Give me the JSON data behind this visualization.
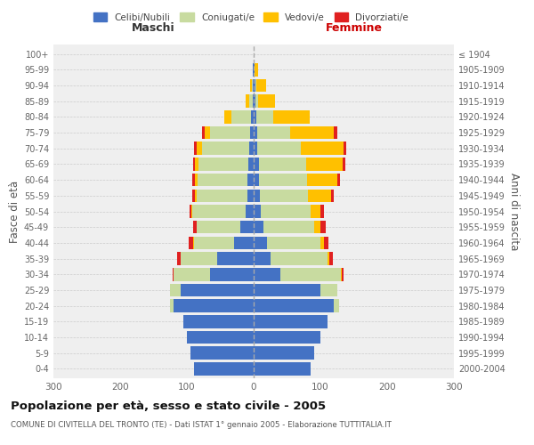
{
  "age_groups": [
    "0-4",
    "5-9",
    "10-14",
    "15-19",
    "20-24",
    "25-29",
    "30-34",
    "35-39",
    "40-44",
    "45-49",
    "50-54",
    "55-59",
    "60-64",
    "65-69",
    "70-74",
    "75-79",
    "80-84",
    "85-89",
    "90-94",
    "95-99",
    "100+"
  ],
  "birth_years": [
    "2000-2004",
    "1995-1999",
    "1990-1994",
    "1985-1989",
    "1980-1984",
    "1975-1979",
    "1970-1974",
    "1965-1969",
    "1960-1964",
    "1955-1959",
    "1950-1954",
    "1945-1949",
    "1940-1944",
    "1935-1939",
    "1930-1934",
    "1925-1929",
    "1920-1924",
    "1915-1919",
    "1910-1914",
    "1905-1909",
    "≤ 1904"
  ],
  "maschi": {
    "celibi": [
      90,
      95,
      100,
      105,
      120,
      110,
      65,
      55,
      30,
      20,
      12,
      10,
      9,
      8,
      7,
      5,
      4,
      2,
      1,
      1,
      0
    ],
    "coniugati": [
      0,
      0,
      0,
      0,
      5,
      15,
      55,
      55,
      60,
      65,
      80,
      75,
      75,
      75,
      70,
      60,
      30,
      5,
      2,
      0,
      0
    ],
    "vedovi": [
      0,
      0,
      0,
      0,
      0,
      0,
      0,
      0,
      1,
      1,
      2,
      3,
      4,
      5,
      8,
      8,
      10,
      5,
      2,
      0,
      0
    ],
    "divorziati": [
      0,
      0,
      0,
      0,
      0,
      0,
      2,
      5,
      6,
      5,
      2,
      4,
      4,
      3,
      5,
      4,
      0,
      0,
      0,
      0,
      0
    ]
  },
  "femmine": {
    "nubili": [
      85,
      90,
      100,
      110,
      120,
      100,
      40,
      25,
      20,
      15,
      10,
      9,
      8,
      8,
      5,
      5,
      4,
      2,
      2,
      1,
      0
    ],
    "coniugate": [
      0,
      0,
      0,
      0,
      8,
      25,
      90,
      85,
      80,
      75,
      75,
      72,
      72,
      70,
      65,
      50,
      25,
      5,
      2,
      0,
      0
    ],
    "vedove": [
      0,
      0,
      0,
      0,
      0,
      0,
      2,
      3,
      5,
      10,
      15,
      35,
      45,
      55,
      65,
      65,
      55,
      25,
      15,
      5,
      0
    ],
    "divorziate": [
      0,
      0,
      0,
      0,
      0,
      0,
      2,
      5,
      7,
      8,
      5,
      4,
      4,
      4,
      4,
      5,
      0,
      0,
      0,
      0,
      0
    ]
  },
  "colors": {
    "celibi_nubili": "#4472c4",
    "coniugati": "#c8dba0",
    "vedovi": "#ffc000",
    "divorziati": "#e02020"
  },
  "title": "Popolazione per età, sesso e stato civile - 2005",
  "subtitle": "COMUNE DI CIVITELLA DEL TRONTO (TE) - Dati ISTAT 1° gennaio 2005 - Elaborazione TUTTITALIA.IT",
  "ylabel_left": "Fasce di età",
  "ylabel_right": "Anni di nascita",
  "xlabel_maschi": "Maschi",
  "xlabel_femmine": "Femmine",
  "xlim": 300,
  "background_color": "#f5f5f5",
  "plot_bg": "#efefef",
  "legend_labels": [
    "Celibi/Nubili",
    "Coniugati/e",
    "Vedovi/e",
    "Divorziati/e"
  ]
}
